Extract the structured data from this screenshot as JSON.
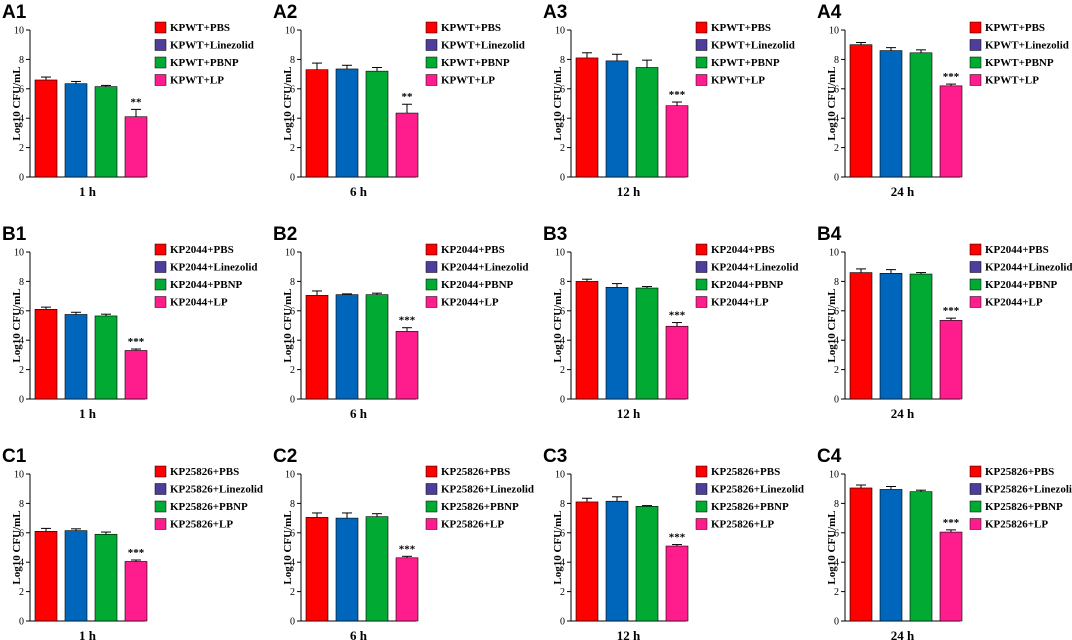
{
  "figure": {
    "colors": [
      "#ff0000",
      "#0066bb",
      "#00aa33",
      "#ff1c8d"
    ],
    "legend_colors": [
      "#ff0000",
      "#4e3d99",
      "#00aa33",
      "#ff1c8d"
    ],
    "y_axis_title": "Log10 CFU/mL"
  },
  "chart_data": [
    {
      "panel": "A1",
      "type": "bar",
      "xlabel": "1 h",
      "ylabel": "Log10 CFU/mL",
      "ylim": [
        0,
        10
      ],
      "yticks": [
        "0",
        "2",
        "4",
        "6",
        "8",
        "10"
      ],
      "categories": [
        "KPWT+PBS",
        "KPWT+Linezolid",
        "KPWT+PBNP",
        "KPWT+LP"
      ],
      "values": [
        6.6,
        6.35,
        6.15,
        4.1
      ],
      "errors": [
        0.2,
        0.15,
        0.08,
        0.5
      ],
      "significance": "**"
    },
    {
      "panel": "A2",
      "type": "bar",
      "xlabel": "6 h",
      "ylabel": "Log10 CFU/mL",
      "ylim": [
        0,
        10
      ],
      "yticks": [
        "0",
        "2",
        "4",
        "6",
        "8",
        "10"
      ],
      "categories": [
        "KPWT+PBS",
        "KPWT+Linezolid",
        "KPWT+PBNP",
        "KPWT+LP"
      ],
      "values": [
        7.3,
        7.35,
        7.2,
        4.35
      ],
      "errors": [
        0.45,
        0.25,
        0.25,
        0.6
      ],
      "significance": "**"
    },
    {
      "panel": "A3",
      "type": "bar",
      "xlabel": "12 h",
      "ylabel": "Log10 CFU/mL",
      "ylim": [
        0,
        10
      ],
      "yticks": [
        "0",
        "2",
        "4",
        "6",
        "8",
        "10"
      ],
      "categories": [
        "KPWT+PBS",
        "KPWT+Linezolid",
        "KPWT+PBNP",
        "KPWT+LP"
      ],
      "values": [
        8.1,
        7.9,
        7.45,
        4.85
      ],
      "errors": [
        0.35,
        0.45,
        0.5,
        0.25
      ],
      "significance": "***"
    },
    {
      "panel": "A4",
      "type": "bar",
      "xlabel": "24 h",
      "ylabel": "Log10 CFU/mL",
      "ylim": [
        0,
        10
      ],
      "yticks": [
        "0",
        "2",
        "4",
        "6",
        "8",
        "10"
      ],
      "categories": [
        "KPWT+PBS",
        "KPWT+Linezolid",
        "KPWT+PBNP",
        "KPWT+LP"
      ],
      "values": [
        9.0,
        8.6,
        8.45,
        6.2
      ],
      "errors": [
        0.15,
        0.2,
        0.2,
        0.12
      ],
      "significance": "***"
    },
    {
      "panel": "B1",
      "type": "bar",
      "xlabel": "1 h",
      "ylabel": "Log10 CFU/mL",
      "ylim": [
        0,
        10
      ],
      "yticks": [
        "0",
        "2",
        "4",
        "6",
        "8",
        "10"
      ],
      "categories": [
        "KP2044+PBS",
        "KP2044+Linezolid",
        "KP2044+PBNP",
        "KP2044+LP"
      ],
      "values": [
        6.1,
        5.75,
        5.65,
        3.3
      ],
      "errors": [
        0.15,
        0.15,
        0.12,
        0.1
      ],
      "significance": "***"
    },
    {
      "panel": "B2",
      "type": "bar",
      "xlabel": "6 h",
      "ylabel": "Log10 CFU/mL",
      "ylim": [
        0,
        10
      ],
      "yticks": [
        "0",
        "2",
        "4",
        "6",
        "8",
        "10"
      ],
      "categories": [
        "KP2044+PBS",
        "KP2044+Linezolid",
        "KP2044+PBNP",
        "KP2044+LP"
      ],
      "values": [
        7.05,
        7.1,
        7.1,
        4.6
      ],
      "errors": [
        0.3,
        0.05,
        0.1,
        0.25
      ],
      "significance": "***"
    },
    {
      "panel": "B3",
      "type": "bar",
      "xlabel": "12 h",
      "ylabel": "Log10 CFU/mL",
      "ylim": [
        0,
        10
      ],
      "yticks": [
        "0",
        "2",
        "4",
        "6",
        "8",
        "10"
      ],
      "categories": [
        "KP2044+PBS",
        "KP2044+Linezolid",
        "KP2044+PBNP",
        "KP2044+LP"
      ],
      "values": [
        8.0,
        7.6,
        7.55,
        4.95
      ],
      "errors": [
        0.15,
        0.25,
        0.1,
        0.25
      ],
      "significance": "***"
    },
    {
      "panel": "B4",
      "type": "bar",
      "xlabel": "24 h",
      "ylabel": "Log10 CFU/mL",
      "ylim": [
        0,
        10
      ],
      "yticks": [
        "0",
        "2",
        "4",
        "6",
        "8",
        "10"
      ],
      "categories": [
        "KP2044+PBS",
        "KP2044+Linezolid",
        "KP2044+PBNP",
        "KP2044+LP"
      ],
      "values": [
        8.6,
        8.55,
        8.5,
        5.35
      ],
      "errors": [
        0.25,
        0.25,
        0.1,
        0.15
      ],
      "significance": "***"
    },
    {
      "panel": "C1",
      "type": "bar",
      "xlabel": "1 h",
      "ylabel": "Log10 CFU/mL",
      "ylim": [
        0,
        10
      ],
      "yticks": [
        "0",
        "2",
        "4",
        "6",
        "8",
        "10"
      ],
      "categories": [
        "KP25826+PBS",
        "KP25826+Linezolid",
        "KP25826+PBNP",
        "KP25826+LP"
      ],
      "values": [
        6.1,
        6.15,
        5.9,
        4.05
      ],
      "errors": [
        0.2,
        0.12,
        0.15,
        0.1
      ],
      "significance": "***"
    },
    {
      "panel": "C2",
      "type": "bar",
      "xlabel": "6 h",
      "ylabel": "Log10 CFU/mL",
      "ylim": [
        0,
        10
      ],
      "yticks": [
        "0",
        "2",
        "4",
        "6",
        "8",
        "10"
      ],
      "categories": [
        "KP25826+PBS",
        "KP25826+Linezolid",
        "KP25826+PBNP",
        "KP25826+LP"
      ],
      "values": [
        7.05,
        7.0,
        7.1,
        4.3
      ],
      "errors": [
        0.3,
        0.35,
        0.2,
        0.1
      ],
      "significance": "***"
    },
    {
      "panel": "C3",
      "type": "bar",
      "xlabel": "12 h",
      "ylabel": "Log10 CFU/mL",
      "ylim": [
        0,
        10
      ],
      "yticks": [
        "0",
        "2",
        "4",
        "6",
        "8",
        "10"
      ],
      "categories": [
        "KP25826+PBS",
        "KP25826+Linezolid",
        "KP25826+PBNP",
        "KP25826+LP"
      ],
      "values": [
        8.1,
        8.15,
        7.8,
        5.1
      ],
      "errors": [
        0.25,
        0.3,
        0.05,
        0.1
      ],
      "significance": "***"
    },
    {
      "panel": "C4",
      "type": "bar",
      "xlabel": "24 h",
      "ylabel": "Log10 CFU/mL",
      "ylim": [
        0,
        10
      ],
      "yticks": [
        "0",
        "2",
        "4",
        "6",
        "8",
        "10"
      ],
      "categories": [
        "KP25826+PBS",
        "KP25826+Linezolid",
        "KP25826+PBNP",
        "KP25826+LP"
      ],
      "values": [
        9.05,
        8.95,
        8.8,
        6.05
      ],
      "errors": [
        0.2,
        0.2,
        0.1,
        0.15
      ],
      "significance": "***"
    }
  ]
}
